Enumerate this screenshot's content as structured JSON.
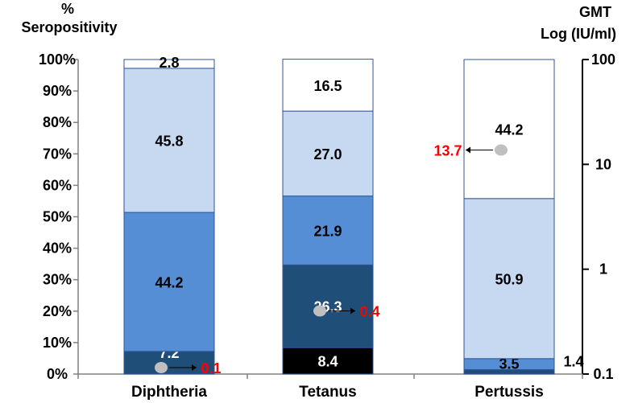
{
  "chart_data": {
    "type": "bar",
    "stacked": true,
    "title": "",
    "ylabel_left": [
      "%",
      "Seropositivity"
    ],
    "ylabel_right": [
      "GMT",
      "Log (IU/ml)"
    ],
    "left_ticks": [
      "0%",
      "10%",
      "20%",
      "30%",
      "40%",
      "50%",
      "60%",
      "70%",
      "80%",
      "90%",
      "100%"
    ],
    "left_tick_values": [
      0,
      10,
      20,
      30,
      40,
      50,
      60,
      70,
      80,
      90,
      100
    ],
    "right_ticks": [
      "0.1",
      "1",
      "10",
      "100"
    ],
    "right_tick_values": [
      0.1,
      1,
      10,
      100
    ],
    "ylim": [
      0,
      100
    ],
    "categories": [
      "Diphtheria",
      "Tetanus",
      "Pertussis"
    ],
    "bars": [
      {
        "category": "Diphtheria",
        "segments": [
          {
            "value": 7.2,
            "label": "7.2",
            "color": "#1f4e79",
            "text_color": "#ffffff"
          },
          {
            "value": 44.2,
            "label": "44.2",
            "color": "#558ed5",
            "text_color": "#000000"
          },
          {
            "value": 45.8,
            "label": "45.8",
            "color": "#c6d9f1",
            "text_color": "#000000"
          },
          {
            "value": 2.8,
            "label": "2.8",
            "color": "#ffffff",
            "text_color": "#000000"
          }
        ],
        "gmt": {
          "value": 0.1,
          "label": "0.1"
        }
      },
      {
        "category": "Tetanus",
        "segments": [
          {
            "value": 8.4,
            "label": "8.4",
            "color": "#000000",
            "text_color": "#ffffff"
          },
          {
            "value": 26.3,
            "label": "26.3",
            "color": "#1f4e79",
            "text_color": "#ffffff"
          },
          {
            "value": 21.9,
            "label": "21.9",
            "color": "#558ed5",
            "text_color": "#000000"
          },
          {
            "value": 27.0,
            "label": "27.0",
            "color": "#c6d9f1",
            "text_color": "#000000"
          },
          {
            "value": 16.5,
            "label": "16.5",
            "color": "#ffffff",
            "text_color": "#000000"
          }
        ],
        "gmt": {
          "value": 0.4,
          "label": "0.4"
        }
      },
      {
        "category": "Pertussis",
        "segments": [
          {
            "value": 1.4,
            "label": "1.4",
            "color": "#1f4e79",
            "text_color": "#000000",
            "label_outside": true
          },
          {
            "value": 3.5,
            "label": "3.5",
            "color": "#558ed5",
            "text_color": "#000000"
          },
          {
            "value": 50.9,
            "label": "50.9",
            "color": "#c6d9f1",
            "text_color": "#000000"
          },
          {
            "value": 44.2,
            "label": "44.2",
            "color": "#ffffff",
            "text_color": "#000000"
          }
        ],
        "gmt": {
          "value": 13.7,
          "label": "13.7"
        }
      }
    ],
    "gmt_label_color": "#ff0000",
    "gmt_marker_color": "#bfbfbf"
  }
}
